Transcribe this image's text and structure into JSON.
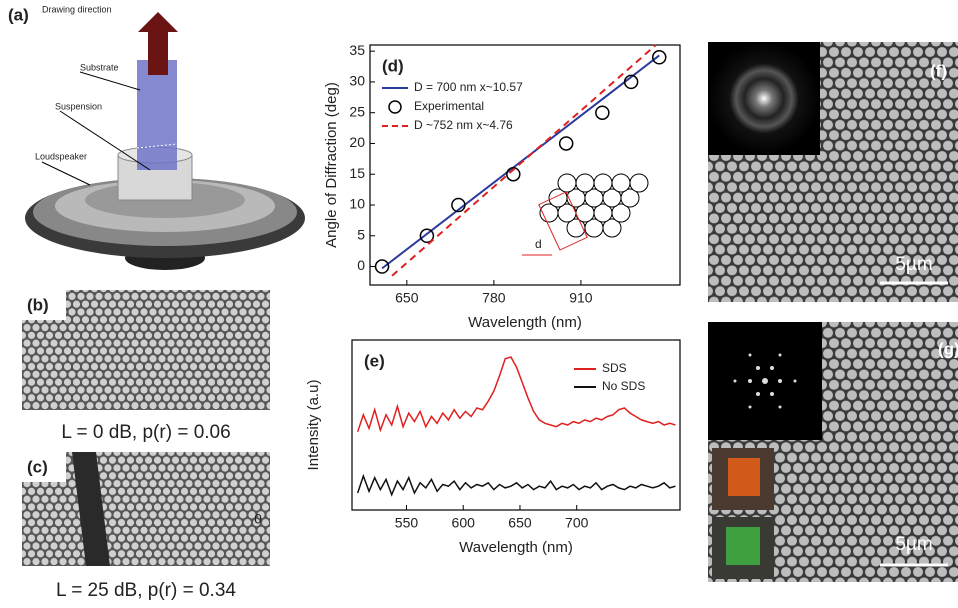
{
  "panels": {
    "a": {
      "label": "(a)",
      "direction": "Drawing direction",
      "substrate": "Substrate",
      "suspension": "Suspension",
      "loudspeaker": "Loudspeaker"
    },
    "b": {
      "label": "(b)",
      "caption": "L = 0 dB, p(r) = 0.06"
    },
    "c": {
      "label": "(c)",
      "caption": "L = 25 dB, p(r) = 0.34"
    },
    "f": {
      "label": "(f)",
      "scale": "5µm"
    },
    "g": {
      "label": "(g)",
      "scale": "5µm"
    }
  },
  "chart_data": [
    {
      "type": "scatter",
      "label": "(d)",
      "xlabel": "Wavelength (nm)",
      "ylabel": "Angle of Diffraction (deg)",
      "xlim": [
        595,
        1058
      ],
      "ylim": [
        -3,
        36
      ],
      "xticks": [
        650,
        780,
        910
      ],
      "yticks": [
        0,
        5,
        10,
        15,
        20,
        25,
        30,
        35
      ],
      "annotation": "d",
      "series": [
        {
          "name": "D = 700 nm x~10.57",
          "color": "#2a3b9c",
          "style": "line",
          "x": [
            613,
            1027
          ],
          "values": [
            -0.3,
            34.3
          ]
        },
        {
          "name": "Experimental",
          "color": "#000000",
          "style": "marker",
          "x": [
            613,
            680,
            727,
            809,
            888,
            942,
            985,
            1027
          ],
          "values": [
            0,
            5,
            10,
            15,
            20,
            25,
            30,
            34
          ]
        },
        {
          "name": "D ~752 nm x~4.76",
          "color": "#e02020",
          "style": "dashed",
          "x": [
            628,
            1022
          ],
          "values": [
            -1.5,
            36
          ]
        }
      ]
    },
    {
      "type": "line",
      "label": "(e)",
      "xlabel": "Wavelength (nm)",
      "ylabel": "Intensity (a.u)",
      "xlim": [
        502,
        791
      ],
      "ylim": [
        0,
        10
      ],
      "xticks": [
        550,
        600,
        650,
        700
      ],
      "yticks": [
        0
      ],
      "x": [
        507,
        512,
        517,
        522,
        527,
        532,
        537,
        542,
        547,
        552,
        557,
        562,
        567,
        572,
        577,
        582,
        587,
        592,
        597,
        602,
        607,
        612,
        617,
        622,
        627,
        632,
        637,
        642,
        647,
        652,
        657,
        662,
        667,
        672,
        677,
        682,
        687,
        692,
        697,
        702,
        707,
        712,
        717,
        722,
        727,
        732,
        737,
        742,
        747,
        752,
        757,
        762,
        767,
        772,
        777,
        782,
        787
      ],
      "series": [
        {
          "name": "SDS",
          "color": "#e02020",
          "values": [
            4.6,
            5.6,
            4.8,
            5.9,
            4.7,
            5.6,
            5.0,
            6.1,
            4.9,
            5.7,
            5.2,
            5.8,
            4.9,
            5.5,
            5.1,
            5.7,
            5.3,
            5.9,
            5.4,
            5.8,
            5.5,
            6.0,
            5.9,
            6.4,
            7.0,
            7.9,
            8.9,
            9.0,
            8.4,
            7.5,
            6.6,
            5.8,
            5.3,
            5.1,
            5.0,
            4.9,
            5.1,
            5.0,
            5.2,
            5.1,
            5.3,
            5.2,
            5.4,
            5.3,
            5.5,
            5.6,
            5.9,
            6.0,
            5.7,
            5.5,
            5.3,
            5.2,
            5.1,
            5.2,
            5.0,
            5.1,
            5.0
          ]
        },
        {
          "name": "No SDS",
          "color": "#111111",
          "values": [
            1.0,
            2.0,
            1.1,
            1.9,
            1.2,
            1.8,
            0.9,
            1.7,
            1.2,
            1.9,
            1.0,
            1.6,
            1.3,
            1.8,
            1.1,
            1.5,
            1.4,
            1.7,
            1.2,
            1.6,
            1.3,
            1.5,
            1.4,
            1.6,
            1.2,
            1.5,
            1.3,
            1.4,
            1.6,
            1.3,
            1.5,
            1.2,
            1.4,
            1.3,
            1.7,
            1.2,
            1.4,
            1.3,
            1.5,
            1.2,
            1.4,
            1.3,
            1.6,
            1.2,
            1.4,
            1.5,
            1.3,
            1.2,
            1.4,
            1.3,
            1.5,
            1.4,
            1.3,
            1.4,
            1.6,
            1.3,
            1.4
          ]
        }
      ]
    }
  ]
}
